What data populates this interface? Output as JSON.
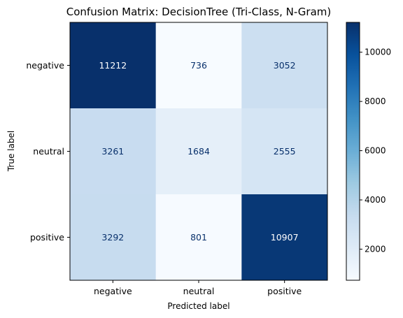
{
  "chart_data": {
    "type": "heatmap",
    "title": "Confusion Matrix: DecisionTree (Tri-Class, N-Gram)",
    "xlabel": "Predicted label",
    "ylabel": "True label",
    "x_categories": [
      "negative",
      "neutral",
      "positive"
    ],
    "y_categories": [
      "negative",
      "neutral",
      "positive"
    ],
    "values": [
      [
        11212,
        736,
        3052
      ],
      [
        3261,
        1684,
        2555
      ],
      [
        3292,
        801,
        10907
      ]
    ],
    "colormap": "Blues",
    "colorbar": {
      "range": [
        736,
        11212
      ],
      "ticks": [
        2000,
        4000,
        6000,
        8000,
        10000
      ]
    },
    "text_colors": {
      "dark_cell": "#ffffff",
      "light_cell": "#08306b"
    }
  }
}
